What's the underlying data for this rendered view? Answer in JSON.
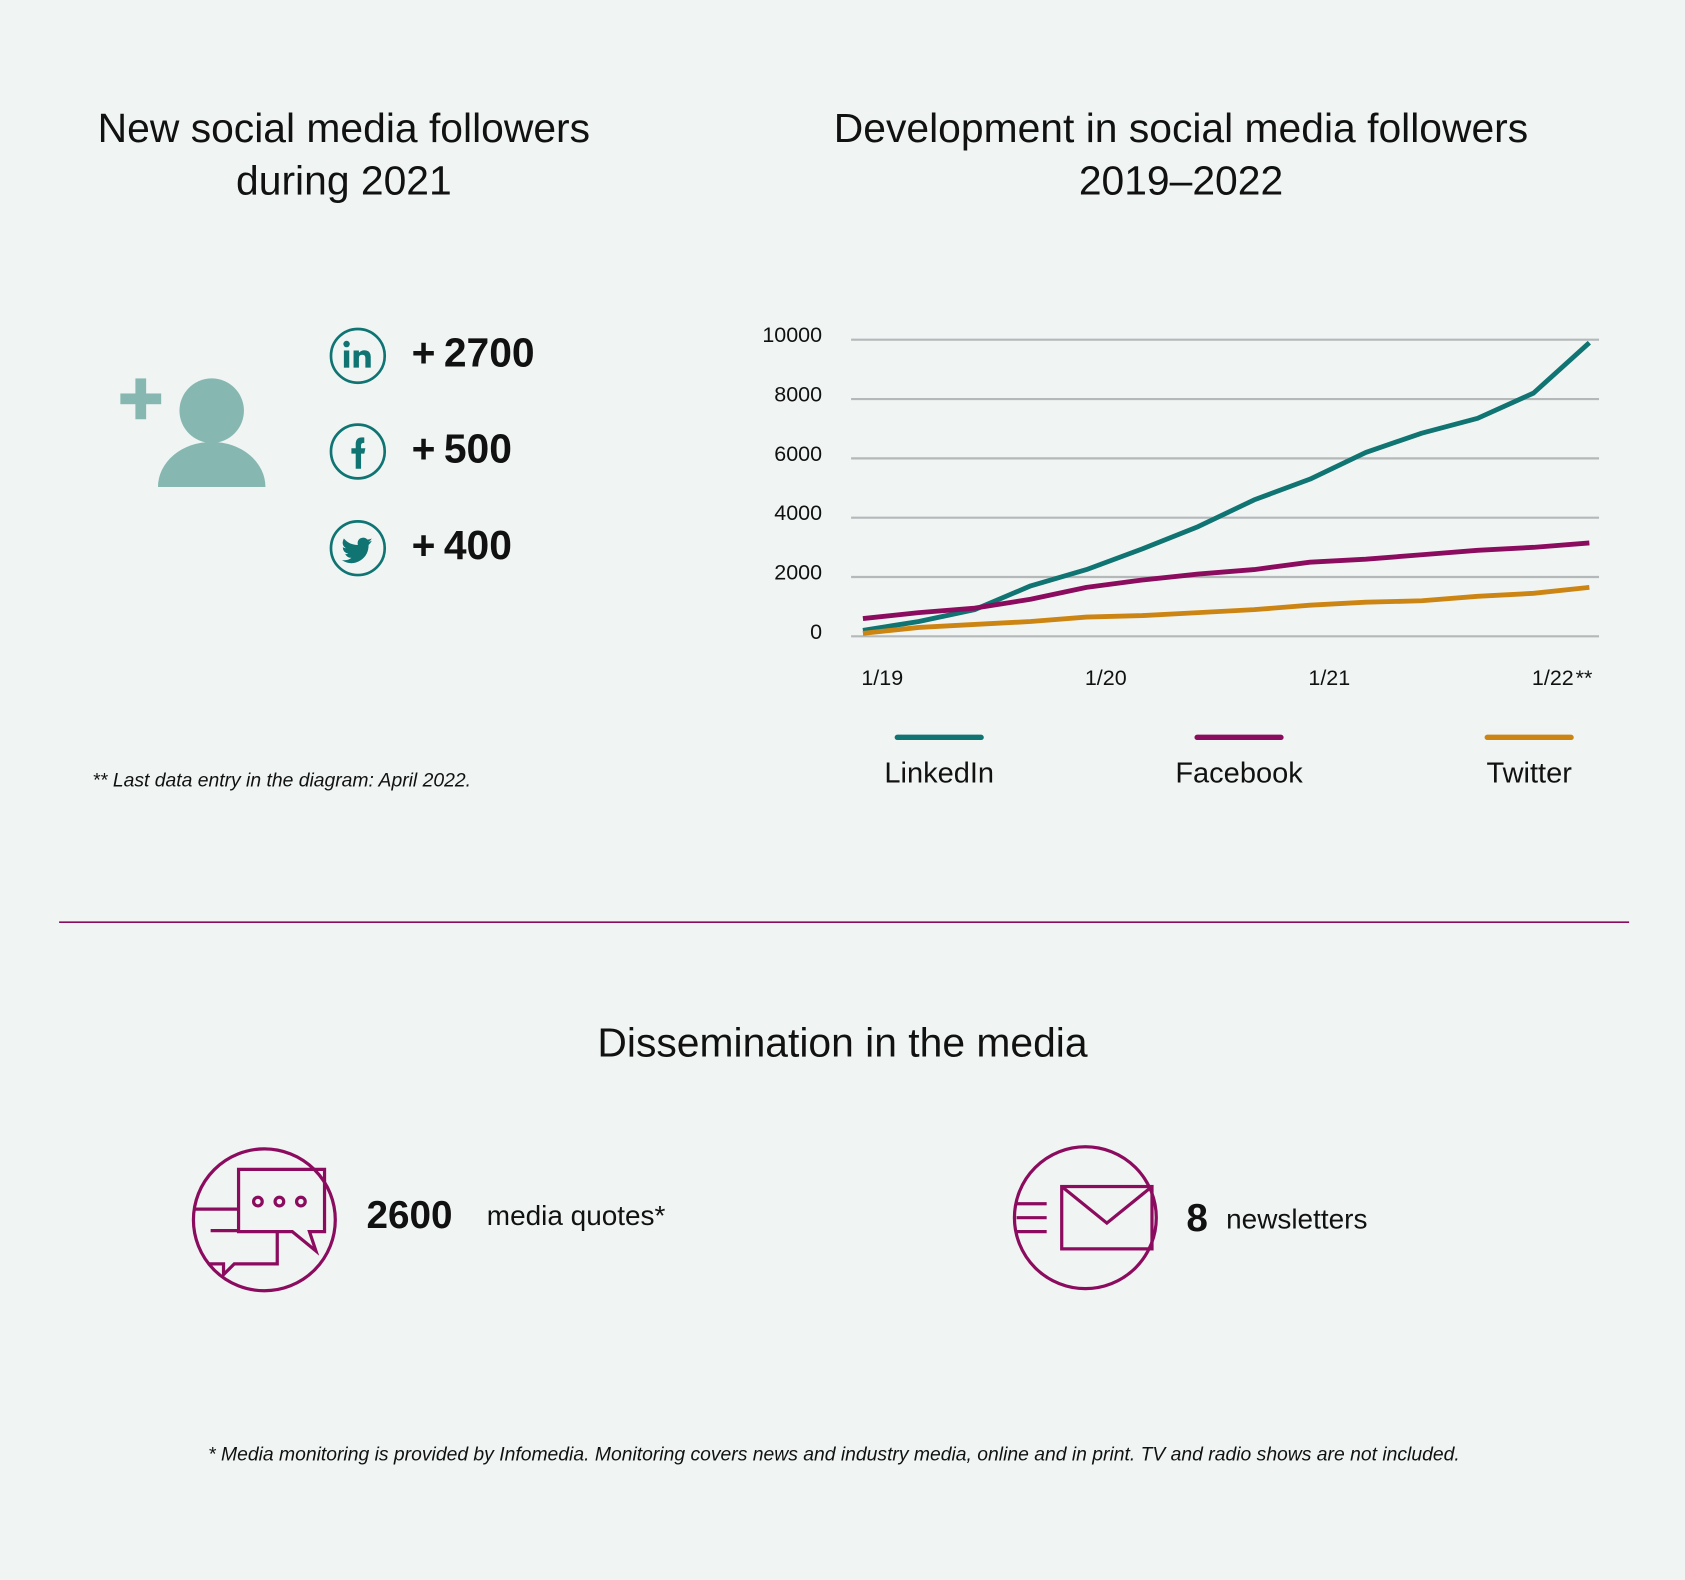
{
  "followers_2021": {
    "title": [
      "New social media followers",
      "during 2021"
    ],
    "items": [
      {
        "prefix": "+",
        "value": 2700
      },
      {
        "prefix": "+",
        "value": 500
      },
      {
        "prefix": "+",
        "value": 400
      }
    ],
    "footnote": "** Last data entry in the diagram: April 2022."
  },
  "chart_data": {
    "type": "line",
    "title": [
      "Development in social media followers",
      "2019–2022"
    ],
    "categories": [
      "1/19",
      null,
      null,
      null,
      "1/20",
      null,
      null,
      null,
      "1/21",
      null,
      null,
      null,
      "1/22",
      null
    ],
    "x_note": "**",
    "series": [
      {
        "name": "LinkedIn",
        "color": "#0f7472",
        "values": [
          200,
          500,
          900,
          1700,
          2250,
          2950,
          3700,
          4600,
          5300,
          6200,
          6850,
          7350,
          8200,
          9900
        ]
      },
      {
        "name": "Facebook",
        "color": "#8b0c5e",
        "values": [
          600,
          800,
          950,
          1250,
          1650,
          1900,
          2100,
          2250,
          2500,
          2600,
          2750,
          2900,
          3000,
          3150
        ]
      },
      {
        "name": "Twitter",
        "color": "#cc8512",
        "values": [
          100,
          300,
          400,
          500,
          650,
          700,
          800,
          900,
          1050,
          1150,
          1200,
          1350,
          1450,
          1650
        ]
      }
    ],
    "ylim": [
      0,
      10000
    ],
    "yticks": [
      0,
      2000,
      4000,
      6000,
      8000,
      10000
    ],
    "grid": true
  },
  "media": {
    "title": "Dissemination in the media",
    "items": [
      {
        "value": 2600,
        "label": "media quotes*"
      },
      {
        "value": 8,
        "label": "newsletters"
      }
    ],
    "footnote": "* Media monitoring is provided by Infomedia. Monitoring covers news and industry media, online and in print. TV and radio shows are not included."
  }
}
